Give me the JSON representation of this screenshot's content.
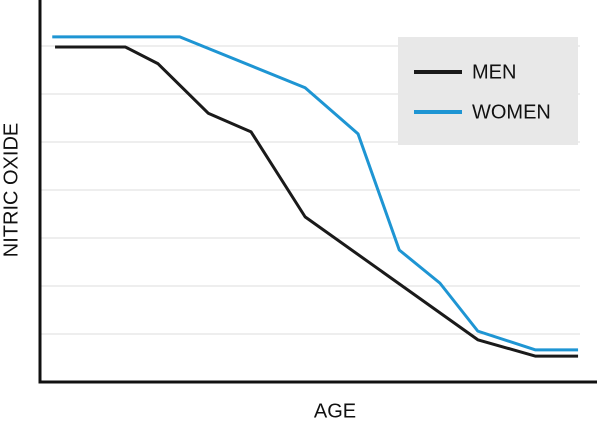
{
  "chart_data": {
    "type": "line",
    "x_label": "AGE",
    "y_label": "NITRIC OXIDE",
    "xlim": [
      0,
      10
    ],
    "ylim": [
      0,
      8
    ],
    "yticks": [
      1,
      2,
      3,
      4,
      5,
      6,
      7
    ],
    "grid": true,
    "tick_labels": false,
    "legend": "upper right",
    "series": [
      {
        "name": "MEN",
        "color": "#1a1a1a",
        "x": [
          0.27,
          1.53,
          2.12,
          3.02,
          3.79,
          4.76,
          7.86,
          8.89,
          9.66
        ],
        "values": [
          6.98,
          6.98,
          6.63,
          5.6,
          5.21,
          3.44,
          0.88,
          0.54,
          0.54
        ]
      },
      {
        "name": "WOMEN",
        "color": "#1e95d3",
        "x": [
          0.22,
          2.51,
          4.76,
          5.71,
          6.45,
          7.18,
          7.86,
          8.89,
          9.66
        ],
        "values": [
          7.19,
          7.19,
          6.13,
          5.17,
          2.75,
          2.06,
          1.06,
          0.67,
          0.67
        ]
      }
    ]
  }
}
